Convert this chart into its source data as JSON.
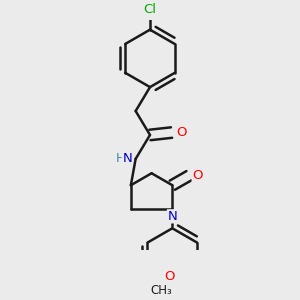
{
  "background_color": "#ebebeb",
  "bond_color": "#1a1a1a",
  "bond_width": 1.8,
  "atom_colors": {
    "O": "#ff0000",
    "N": "#0000cd",
    "Cl": "#00aa00",
    "C": "#1a1a1a"
  },
  "font_size": 9.5
}
